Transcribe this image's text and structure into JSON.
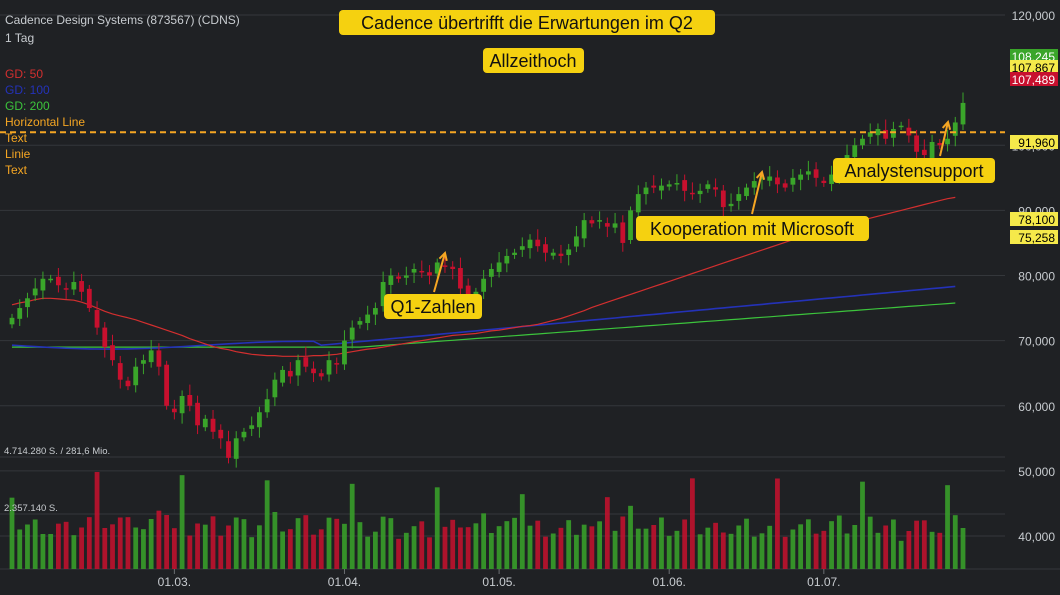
{
  "header": {
    "instrument": "Cadence Design Systems (873567) (CDNS)",
    "interval": "1 Tag"
  },
  "legend": [
    {
      "label": "GD: 50",
      "color": "#d32f2f"
    },
    {
      "label": "GD: 100",
      "color": "#2432b8"
    },
    {
      "label": "GD: 200",
      "color": "#3cc43c"
    },
    {
      "label": "Horizontal Line",
      "color": "#f5a623"
    },
    {
      "label": "Text",
      "color": "#f5a623"
    },
    {
      "label": "Linie",
      "color": "#f5a623"
    },
    {
      "label": "Text",
      "color": "#f5a623"
    }
  ],
  "annotations": {
    "headline": "Cadence übertrifft die Erwartungen im Q2",
    "ath": "Allzeithoch",
    "q1": "Q1-Zahlen",
    "microsoft": "Kooperation mit Microsoft",
    "analysts": "Analystensupport"
  },
  "volume_labels": {
    "max": "4.714.280 S. / 281,6 Mio.",
    "mid": "2.357.140 S."
  },
  "colors": {
    "background": "#1f2124",
    "up": "#3aa52a",
    "down": "#c8102e",
    "annotation_bg": "#f5d110",
    "hline": "#f5a623"
  },
  "chart_data": {
    "type": "candlestick",
    "x_ticks": [
      "01.03.",
      "01.04.",
      "01.05.",
      "01.06.",
      "01.07."
    ],
    "y_ticks": [
      40000,
      50000,
      60000,
      70000,
      80000,
      90000,
      100000,
      120000
    ],
    "y_tick_labels": [
      "40,000",
      "50,000",
      "60,000",
      "70,000",
      "80,000",
      "90,000",
      "100,000",
      "120,000"
    ],
    "ylim": [
      37000,
      122000
    ],
    "horizontal_line": 102000,
    "price_tags": [
      {
        "label": "108,245",
        "value": 108245,
        "bg": "#3aa52a",
        "fg": "#ffffff"
      },
      {
        "label": "107,867",
        "value": 107867,
        "bg": "#f5e94a",
        "fg": "#000000"
      },
      {
        "label": "107,489",
        "value": 107489,
        "bg": "#c8102e",
        "fg": "#ffffff"
      },
      {
        "label": "91,960",
        "value": 91960,
        "bg": "#f5e94a",
        "fg": "#000000"
      },
      {
        "label": "78,100",
        "value": 78100,
        "bg": "#f5e94a",
        "fg": "#000000"
      },
      {
        "label": "75,258",
        "value": 75258,
        "bg": "#f5e94a",
        "fg": "#000000"
      }
    ],
    "close": [
      73.5,
      75,
      76.5,
      78,
      79.5,
      79.5,
      78.5,
      78,
      79,
      77.5,
      75,
      72,
      69,
      67,
      64,
      63,
      66,
      67,
      68.5,
      66,
      60,
      59,
      61.5,
      60,
      57,
      58,
      56,
      55,
      52,
      55,
      56,
      57,
      59,
      61,
      64,
      65.5,
      64.5,
      67,
      66,
      65,
      64.5,
      67,
      66.5,
      70,
      72,
      73,
      74,
      75,
      79,
      80,
      79.5,
      80,
      81,
      80.5,
      80,
      82,
      81.5,
      81,
      78,
      77,
      77.5,
      79.5,
      81,
      82,
      83,
      83.5,
      84.5,
      85.5,
      84.5,
      83.5,
      83.5,
      83,
      84,
      86,
      88.5,
      88,
      88.5,
      87.5,
      88,
      85,
      90,
      92.5,
      93.5,
      93.5,
      93.8,
      94,
      94.2,
      93,
      92.5,
      93,
      94,
      93.2,
      90.5,
      91,
      92.5,
      93.5,
      94.5,
      95,
      95.2,
      94,
      93.5,
      95,
      95.5,
      96,
      95,
      94.2,
      95.5,
      97,
      98.5,
      100,
      101,
      102,
      102.5,
      101,
      102.5,
      103,
      101.5,
      99,
      98.5,
      100.5,
      100,
      101,
      103.5,
      106.5
    ],
    "gd50": [
      75.5,
      75.8,
      76,
      76.3,
      76.5,
      76.5,
      76.4,
      76.3,
      76.2,
      75.9,
      75.5,
      75,
      74.5,
      74.1,
      73.8,
      73.5,
      73.2,
      72.8,
      72.4,
      72,
      71.6,
      71.2,
      70.8,
      70.3,
      69.9,
      69.5,
      69.1,
      68.8,
      68.6,
      68.3,
      68.1,
      67.9,
      67.8,
      67.7,
      67.7,
      67.6,
      67.6,
      67.6,
      67.6,
      67.7,
      67.7,
      67.8,
      67.9,
      68.1,
      68.3,
      68.5,
      68.7,
      68.8,
      69,
      69.2,
      69.4,
      69.6,
      69.8,
      70,
      70.2,
      70.4,
      70.6,
      70.8,
      70.9,
      71,
      71.1,
      71.3,
      71.5,
      71.6,
      71.8,
      72,
      72.2,
      72.3,
      72.5,
      72.8,
      73.1,
      73.4,
      73.8,
      74.2,
      74.6,
      75.1,
      75.5,
      75.9,
      76.3,
      76.7,
      77.1,
      77.5,
      77.9,
      78.3,
      78.7,
      79.1,
      79.5,
      79.9,
      80.3,
      80.7,
      81.1,
      81.5,
      81.9,
      82.3,
      82.7,
      83.1,
      83.5,
      83.9,
      84.3,
      84.7,
      85.1,
      85.5,
      85.9,
      86.3,
      86.7,
      87,
      87.3,
      87.6,
      87.9,
      88.2,
      88.5,
      88.8,
      89.1,
      89.4,
      89.7,
      90,
      90.3,
      90.6,
      90.9,
      91.2,
      91.5,
      91.8,
      92
    ]
  }
}
